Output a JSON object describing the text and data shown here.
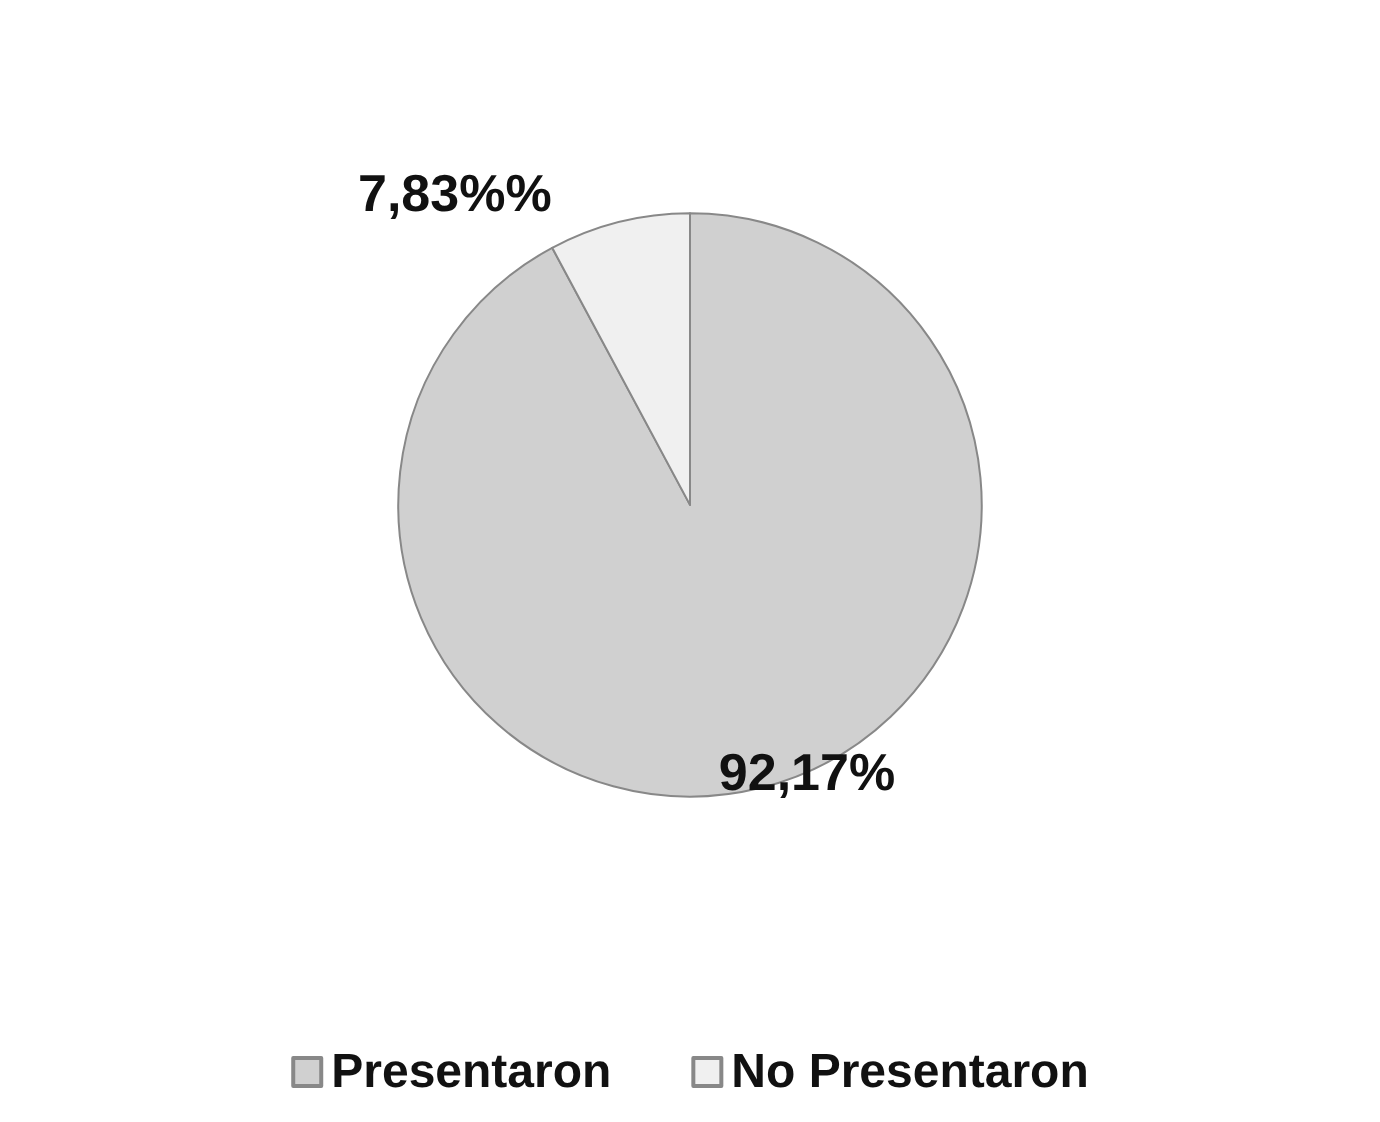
{
  "chart_data": {
    "type": "pie",
    "categories": [
      "Presentaron",
      "No Presentaron"
    ],
    "values": [
      92.17,
      7.83
    ],
    "value_labels": [
      "92,17%",
      "7,83%%"
    ],
    "colors": [
      "#d0d0d0",
      "#f0f0f0"
    ],
    "legend": "bottom"
  }
}
